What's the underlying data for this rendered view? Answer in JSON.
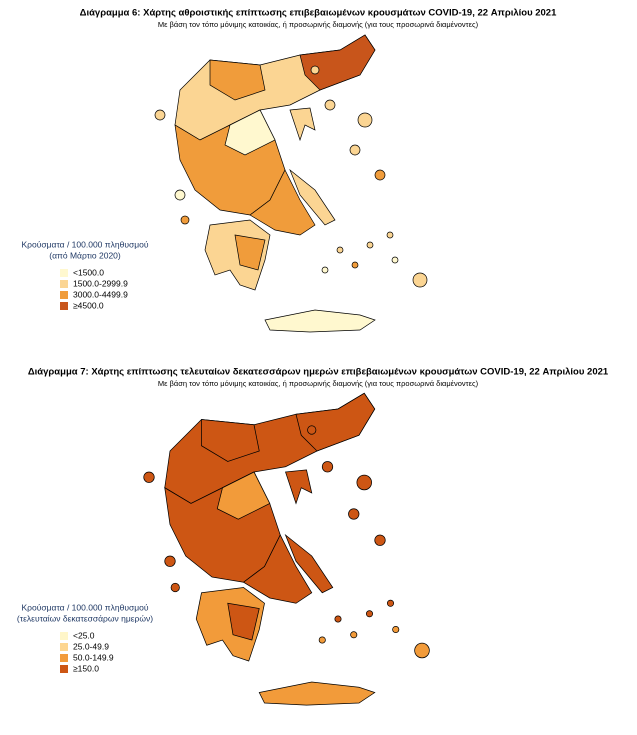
{
  "maps": [
    {
      "title": "Διάγραμμα 6: Χάρτης αθροιστικής επίπτωσης επιβεβαιωμένων κρουσμάτων COVID-19, 22 Απριλίου 2021",
      "subtitle": "Με βάση τον τόπο μόνιμης κατοικίας, ή προσωρινής διαμονής (για τους προσωρινά διαμένοντες)",
      "legend": {
        "title": [
          "Κρούσματα / 100.000 πληθυσμού",
          "(από Μάρτιο 2020)"
        ],
        "items": [
          {
            "label": "<1500.0",
            "color": "#fff8cf"
          },
          {
            "label": "1500.0-2999.9",
            "color": "#fbd593"
          },
          {
            "label": "3000.0-4499.9",
            "color": "#f09c3b"
          },
          {
            "label": "≥4500.0",
            "color": "#c8551b"
          }
        ]
      }
    },
    {
      "title": "Διάγραμμα 7: Χάρτης επίπτωσης τελευταίων δεκατεσσάρων ημερών επιβεβαιωμένων κρουσμάτων COVID-19, 22 Απριλίου 2021",
      "subtitle": "Με βάση τον τόπο μόνιμης κατοικίας, ή προσωρινής διαμονής (για τους προσωρινά διαμένοντες)",
      "legend": {
        "title": [
          "Κρούσματα / 100.000 πληθυσμού",
          "(τελευταίων δεκατεσσάρων ημερών)"
        ],
        "items": [
          {
            "label": "<25.0",
            "color": "#fff6c9"
          },
          {
            "label": "25.0-49.9",
            "color": "#fdd690"
          },
          {
            "label": "50.0-149.9",
            "color": "#f29b3a"
          },
          {
            "label": "≥150.0",
            "color": "#cd5614"
          }
        ]
      }
    }
  ]
}
